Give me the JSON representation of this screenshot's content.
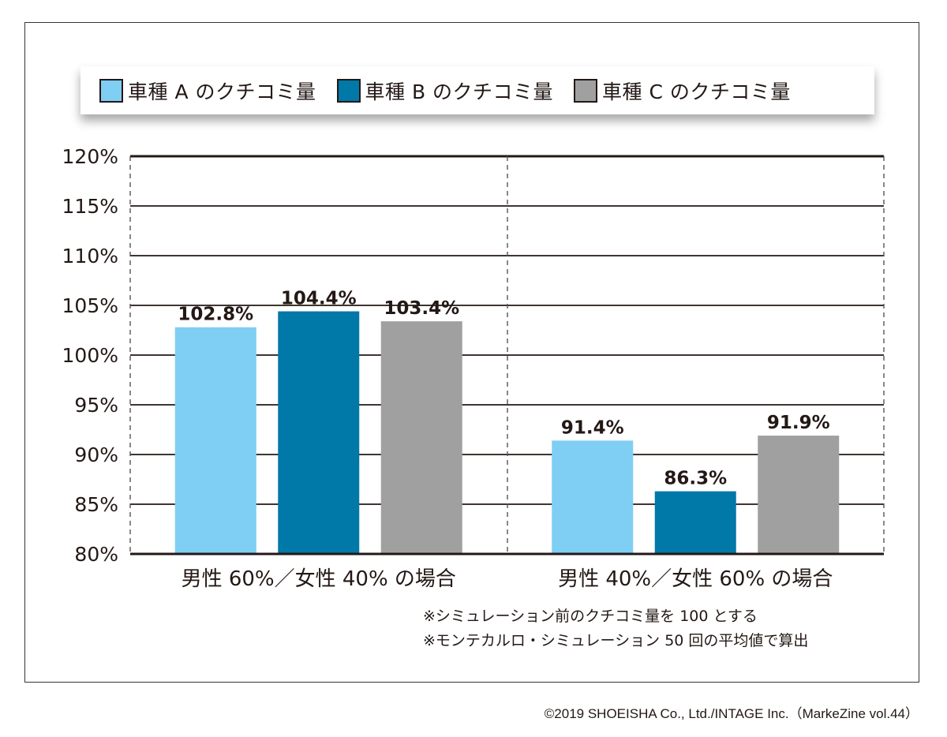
{
  "chart_data": {
    "type": "bar",
    "title": "",
    "xlabel": "",
    "ylabel": "",
    "categories": [
      "男性 60%／女性 40% の場合",
      "男性 40%／女性 60% の場合"
    ],
    "series": [
      {
        "name": "車種 A のクチコミ量",
        "color": "#7fcef4",
        "values": [
          102.8,
          91.4
        ],
        "labels": [
          "102.8%",
          "91.4%"
        ]
      },
      {
        "name": "車種 B のクチコミ量",
        "color": "#0078a8",
        "values": [
          104.4,
          86.3
        ],
        "labels": [
          "104.4%",
          "86.3%"
        ]
      },
      {
        "name": "車種 C のクチコミ量",
        "color": "#a0a0a0",
        "values": [
          103.4,
          91.9
        ],
        "labels": [
          "103.4%",
          "91.9%"
        ]
      }
    ],
    "ylim": [
      80,
      120
    ],
    "yticks": [
      80,
      85,
      90,
      95,
      100,
      105,
      110,
      115,
      120
    ],
    "ytick_labels": [
      "80%",
      "85%",
      "90%",
      "95%",
      "100%",
      "105%",
      "110%",
      "115%",
      "120%"
    ],
    "grid": true,
    "legend_position": "top"
  },
  "notes": [
    "※シミュレーション前のクチコミ量を 100 とする",
    "※モンテカルロ・シミュレーション 50 回の平均値で算出"
  ],
  "copyright": "©2019 SHOEISHA Co., Ltd./INTAGE Inc.（MarkeZine vol.44）"
}
